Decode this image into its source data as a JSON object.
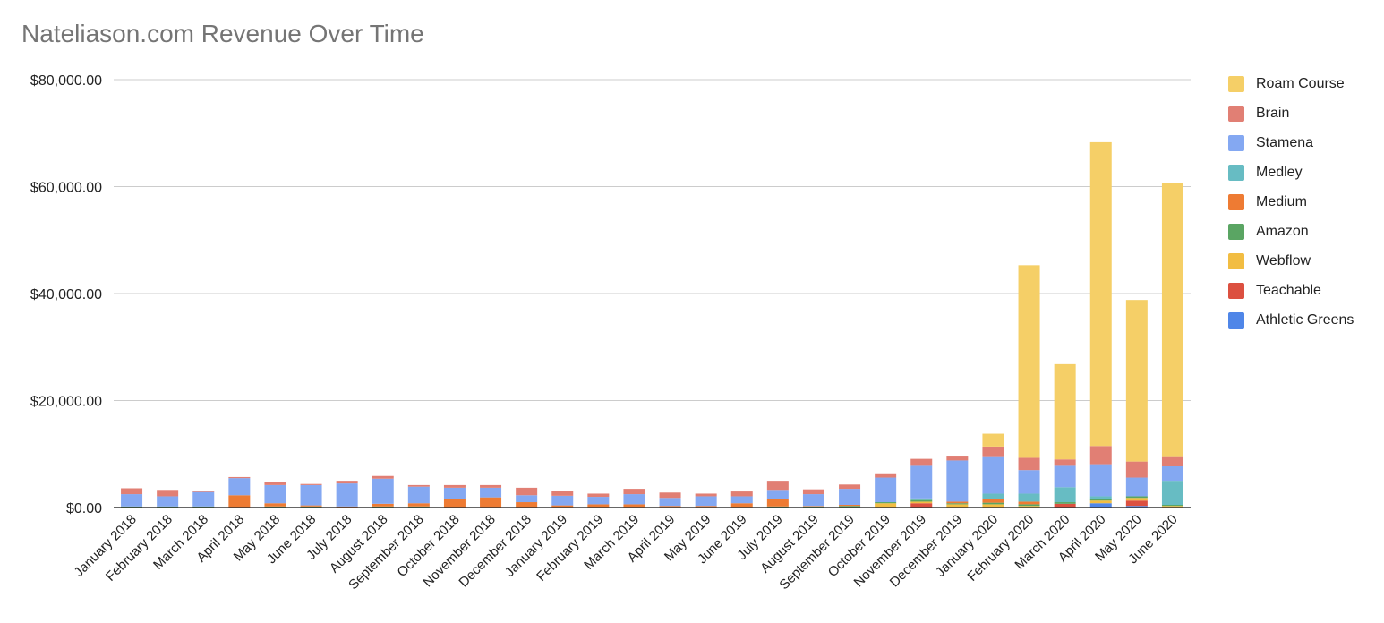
{
  "chart_data": {
    "type": "bar",
    "stacked": true,
    "title": "Nateliason.com Revenue Over Time",
    "xlabel": "",
    "ylabel": "",
    "ylim": [
      0,
      80000
    ],
    "yticks": [
      0,
      20000,
      40000,
      60000,
      80000
    ],
    "ytick_labels": [
      "$0.00",
      "$20,000.00",
      "$40,000.00",
      "$60,000.00",
      "$80,000.00"
    ],
    "grid": true,
    "legend_position": "right",
    "categories": [
      "January 2018",
      "February 2018",
      "March 2018",
      "April 2018",
      "May 2018",
      "June 2018",
      "July 2018",
      "August 2018",
      "September 2018",
      "October 2018",
      "November 2018",
      "December 2018",
      "January 2019",
      "February 2019",
      "March 2019",
      "April 2019",
      "May 2019",
      "June 2019",
      "July 2019",
      "August 2019",
      "September 2019",
      "October 2019",
      "November 2019",
      "December 2019",
      "January 2020",
      "February 2020",
      "March 2020",
      "April 2020",
      "May 2020",
      "June 2020"
    ],
    "series": [
      {
        "name": "Athletic Greens",
        "color": "#4f86e8",
        "values": [
          0,
          0,
          0,
          0,
          0,
          0,
          0,
          0,
          0,
          0,
          0,
          0,
          0,
          0,
          0,
          0,
          0,
          0,
          0,
          0,
          0,
          0,
          0,
          0,
          0,
          0,
          0,
          800,
          300,
          0
        ]
      },
      {
        "name": "Teachable",
        "color": "#dc5040",
        "values": [
          0,
          0,
          0,
          0,
          0,
          0,
          0,
          0,
          0,
          0,
          0,
          0,
          0,
          0,
          0,
          0,
          0,
          0,
          0,
          0,
          0,
          0,
          800,
          0,
          0,
          0,
          700,
          0,
          1000,
          0
        ]
      },
      {
        "name": "Webflow",
        "color": "#f2bd42",
        "values": [
          0,
          0,
          0,
          0,
          0,
          0,
          0,
          0,
          0,
          0,
          0,
          0,
          0,
          0,
          0,
          0,
          0,
          0,
          0,
          0,
          0,
          800,
          300,
          600,
          600,
          300,
          0,
          500,
          500,
          300
        ]
      },
      {
        "name": "Amazon",
        "color": "#5aa563",
        "values": [
          200,
          200,
          200,
          0,
          200,
          200,
          0,
          200,
          200,
          0,
          0,
          0,
          100,
          100,
          100,
          100,
          100,
          100,
          200,
          200,
          300,
          200,
          300,
          200,
          300,
          300,
          300,
          300,
          300,
          200
        ]
      },
      {
        "name": "Medium",
        "color": "#ee7b33",
        "values": [
          0,
          0,
          0,
          2300,
          600,
          200,
          200,
          500,
          600,
          1600,
          1900,
          1000,
          300,
          500,
          500,
          200,
          200,
          700,
          1400,
          100,
          200,
          0,
          0,
          300,
          700,
          500,
          0,
          0,
          0,
          0
        ]
      },
      {
        "name": "Medley",
        "color": "#67bcc3",
        "values": [
          0,
          0,
          0,
          0,
          0,
          0,
          0,
          0,
          0,
          0,
          0,
          0,
          0,
          0,
          0,
          0,
          0,
          0,
          0,
          0,
          0,
          0,
          300,
          0,
          1000,
          1500,
          2800,
          500,
          0,
          4500
        ]
      },
      {
        "name": "Stamena",
        "color": "#84a8f2",
        "values": [
          2300,
          1900,
          2700,
          3200,
          3400,
          3800,
          4300,
          4700,
          3100,
          2100,
          1800,
          1300,
          1800,
          1400,
          1900,
          1500,
          1800,
          1300,
          1700,
          2200,
          3000,
          4600,
          6100,
          7700,
          7000,
          4400,
          4000,
          6000,
          3500,
          2700
        ]
      },
      {
        "name": "Brain",
        "color": "#e17f74",
        "values": [
          1100,
          1200,
          200,
          200,
          500,
          200,
          500,
          500,
          300,
          500,
          500,
          1400,
          900,
          600,
          1000,
          1000,
          500,
          900,
          1700,
          900,
          800,
          800,
          1300,
          900,
          1800,
          2300,
          1200,
          3400,
          3000,
          1900
        ]
      },
      {
        "name": "Roam Course",
        "color": "#f5cf67",
        "values": [
          0,
          0,
          0,
          0,
          0,
          0,
          0,
          0,
          0,
          0,
          0,
          0,
          0,
          0,
          0,
          0,
          0,
          0,
          0,
          0,
          0,
          0,
          0,
          0,
          2400,
          36000,
          17800,
          56800,
          30200,
          51000
        ]
      }
    ]
  }
}
